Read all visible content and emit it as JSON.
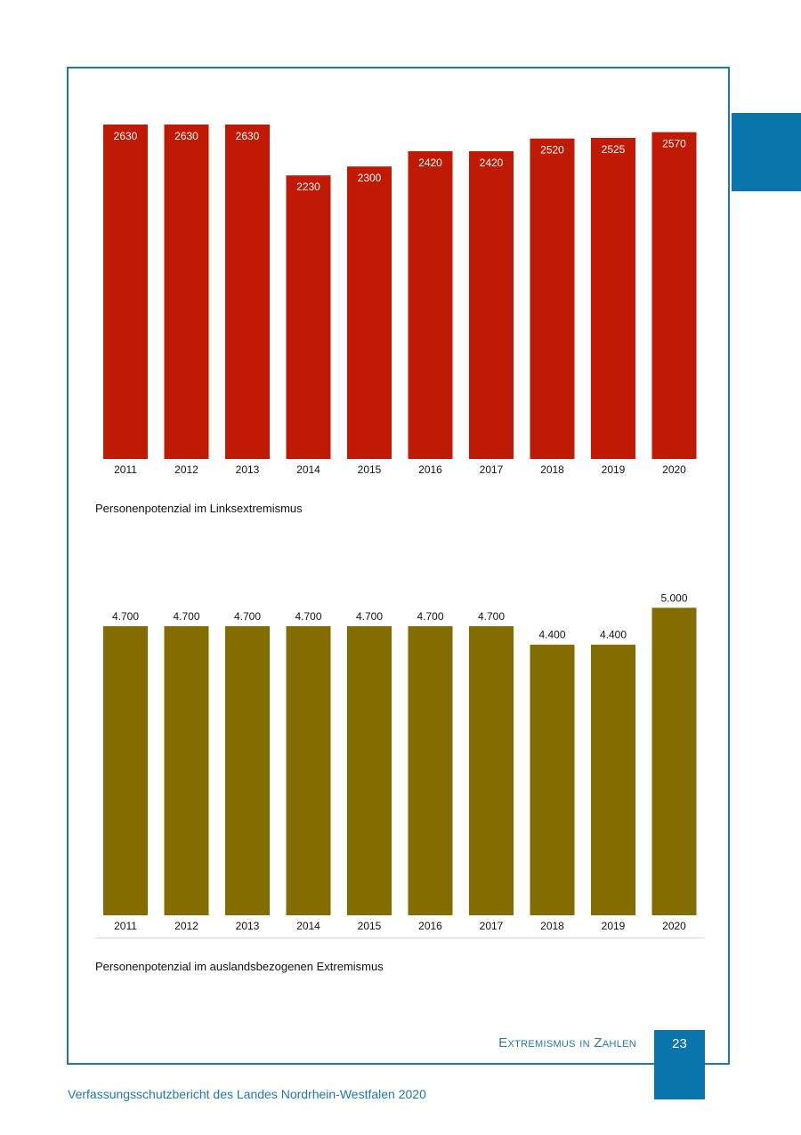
{
  "colors": {
    "frame": "#1f77ac",
    "accent_blue": "#0a74ad",
    "bar_red": "#c01a05",
    "bar_olive": "#846d00",
    "bar_label_white": "#ffffff",
    "axis_text": "#111111"
  },
  "chart_data": [
    {
      "type": "bar",
      "title": "",
      "categories": [
        "2011",
        "2012",
        "2013",
        "2014",
        "2015",
        "2016",
        "2017",
        "2018",
        "2019",
        "2020"
      ],
      "values": [
        2630,
        2630,
        2630,
        2230,
        2300,
        2420,
        2420,
        2520,
        2525,
        2570
      ],
      "value_labels": [
        "2630",
        "2630",
        "2630",
        "2230",
        "2300",
        "2420",
        "2420",
        "2520",
        "2525",
        "2570"
      ],
      "label_position": "inside-top",
      "xlabel": "",
      "ylabel": "",
      "grid": false,
      "caption": "Personenpotenzial im Linksextremismus"
    },
    {
      "type": "bar",
      "title": "",
      "categories": [
        "2011",
        "2012",
        "2013",
        "2014",
        "2015",
        "2016",
        "2017",
        "2018",
        "2019",
        "2020"
      ],
      "values": [
        4700,
        4700,
        4700,
        4700,
        4700,
        4700,
        4700,
        4400,
        4400,
        5000
      ],
      "value_labels": [
        "4.700",
        "4.700",
        "4.700",
        "4.700",
        "4.700",
        "4.700",
        "4.700",
        "4.400",
        "4.400",
        "5.000"
      ],
      "label_position": "above",
      "xlabel": "",
      "ylabel": "",
      "grid": false,
      "caption": "Personenpotenzial im auslandsbezogenen Extremismus"
    }
  ],
  "page": {
    "section_title": "Extremismus in Zahlen",
    "page_number": "23",
    "footer": "Verfassungsschutzbericht des Landes Nordrhein-Westfalen 2020"
  }
}
